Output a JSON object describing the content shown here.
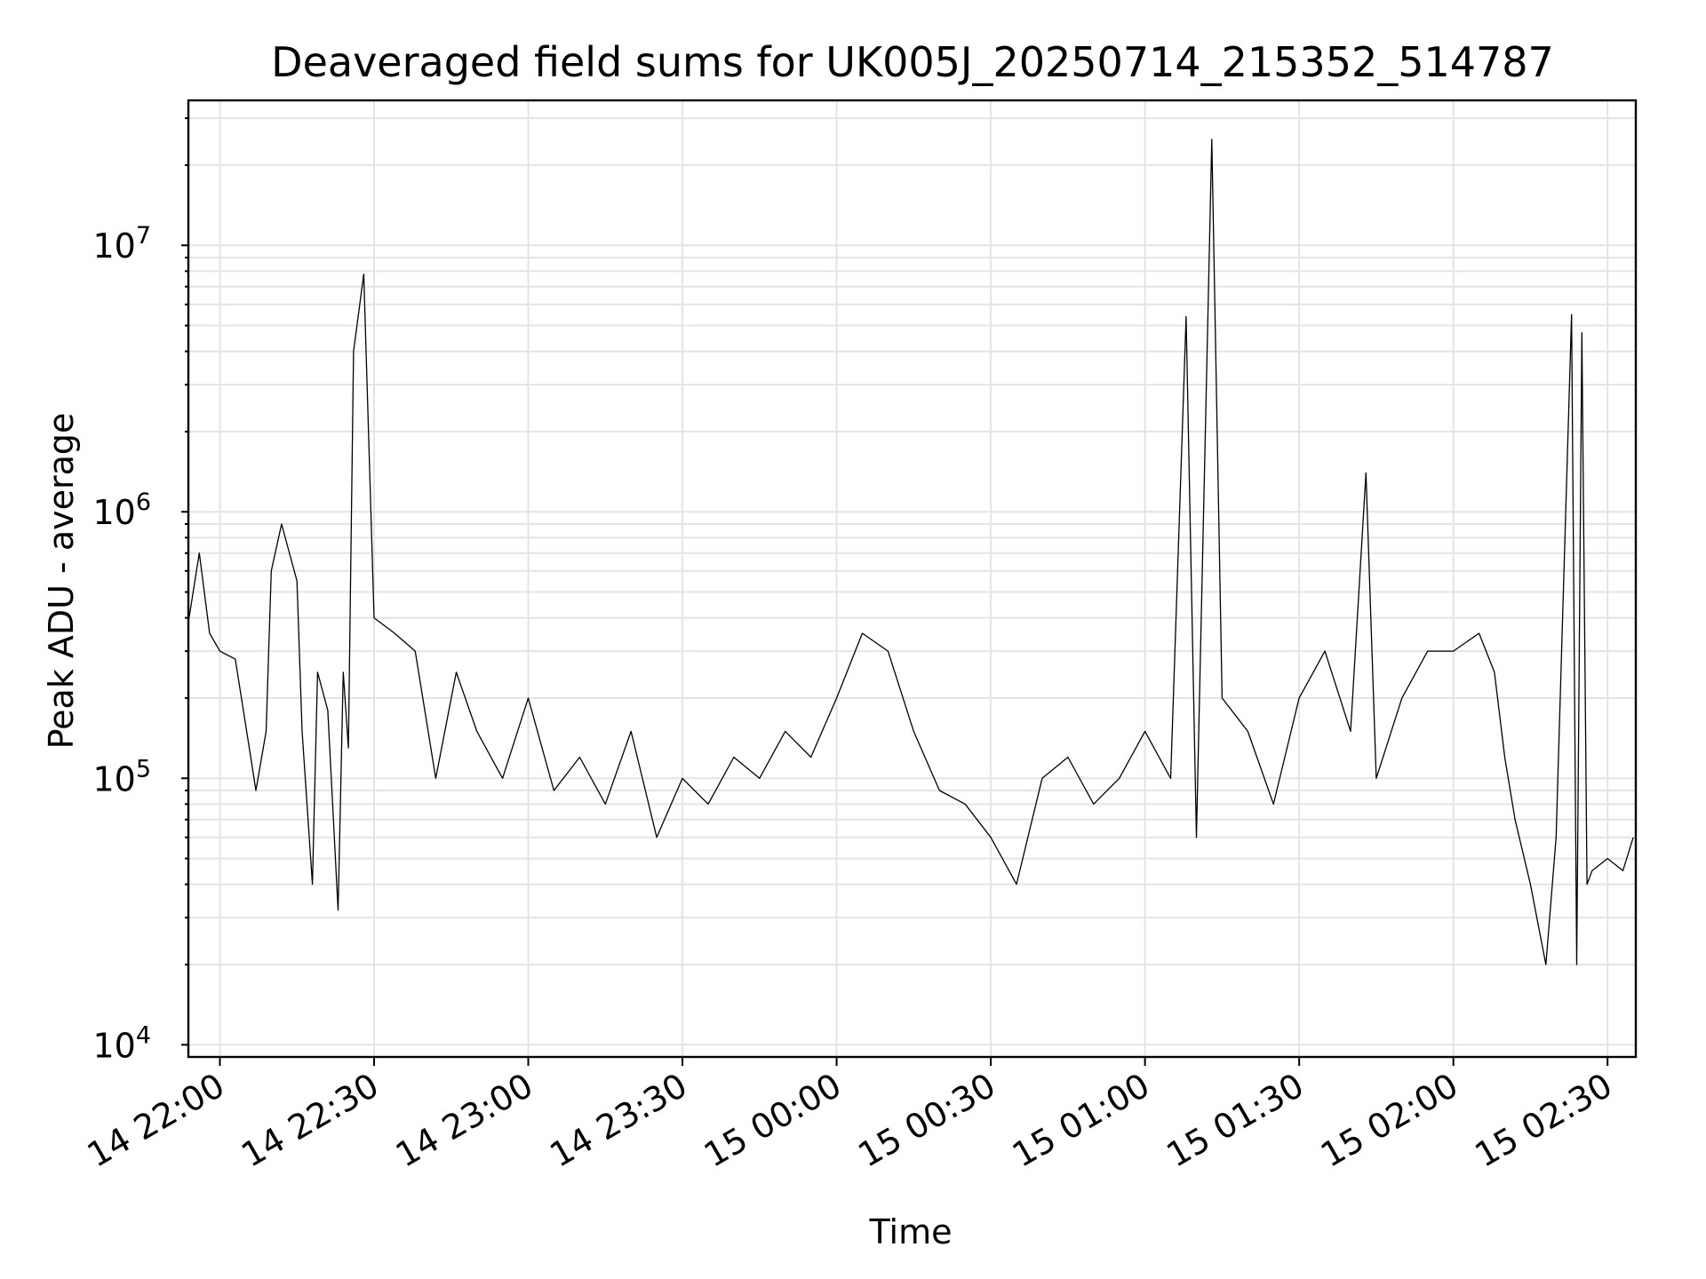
{
  "chart_data": {
    "type": "line",
    "title": "Deaveraged field sums for UK005J_20250714_215352_514787",
    "xlabel": "Time",
    "ylabel": "Peak ADU - average",
    "yscale": "log",
    "ylim": [
      9000,
      35000000
    ],
    "xlim": [
      "2025-07-14 21:53:52",
      "2025-07-15 02:35:30"
    ],
    "grid": true,
    "x_ticks": [
      "14 22:00",
      "14 22:30",
      "14 23:00",
      "14 23:30",
      "15 00:00",
      "15 00:30",
      "15 01:00",
      "15 01:30",
      "15 02:00",
      "15 02:30"
    ],
    "y_ticks": [
      {
        "value": 10000,
        "base": "10",
        "exp": "4"
      },
      {
        "value": 100000,
        "base": "10",
        "exp": "5"
      },
      {
        "value": 1000000,
        "base": "10",
        "exp": "6"
      },
      {
        "value": 10000000,
        "base": "10",
        "exp": "7"
      }
    ],
    "series": [
      {
        "color": "#000000",
        "x": [
          "2025-07-14 21:54",
          "2025-07-14 21:56",
          "2025-07-14 21:58",
          "2025-07-14 22:00",
          "2025-07-14 22:03",
          "2025-07-14 22:06",
          "2025-07-14 22:07",
          "2025-07-14 22:09",
          "2025-07-14 22:10",
          "2025-07-14 22:12",
          "2025-07-14 22:15",
          "2025-07-14 22:16",
          "2025-07-14 22:18",
          "2025-07-14 22:19",
          "2025-07-14 22:21",
          "2025-07-14 22:23",
          "2025-07-14 22:24",
          "2025-07-14 22:25",
          "2025-07-14 22:26",
          "2025-07-14 22:28",
          "2025-07-14 22:30",
          "2025-07-14 22:34",
          "2025-07-14 22:38",
          "2025-07-14 22:42",
          "2025-07-14 22:46",
          "2025-07-14 22:50",
          "2025-07-14 22:55",
          "2025-07-14 23:00",
          "2025-07-14 23:05",
          "2025-07-14 23:10",
          "2025-07-14 23:15",
          "2025-07-14 23:20",
          "2025-07-14 23:25",
          "2025-07-14 23:30",
          "2025-07-14 23:35",
          "2025-07-14 23:40",
          "2025-07-14 23:45",
          "2025-07-14 23:50",
          "2025-07-14 23:55",
          "2025-07-15 00:00",
          "2025-07-15 00:05",
          "2025-07-15 00:10",
          "2025-07-15 00:15",
          "2025-07-15 00:20",
          "2025-07-15 00:25",
          "2025-07-15 00:30",
          "2025-07-15 00:35",
          "2025-07-15 00:40",
          "2025-07-15 00:45",
          "2025-07-15 00:50",
          "2025-07-15 00:55",
          "2025-07-15 01:00",
          "2025-07-15 01:05",
          "2025-07-15 01:08",
          "2025-07-15 01:10",
          "2025-07-15 01:13",
          "2025-07-15 01:15",
          "2025-07-15 01:20",
          "2025-07-15 01:25",
          "2025-07-15 01:30",
          "2025-07-15 01:35",
          "2025-07-15 01:40",
          "2025-07-15 01:43",
          "2025-07-15 01:45",
          "2025-07-15 01:50",
          "2025-07-15 01:55",
          "2025-07-15 02:00",
          "2025-07-15 02:05",
          "2025-07-15 02:08",
          "2025-07-15 02:10",
          "2025-07-15 02:12",
          "2025-07-15 02:15",
          "2025-07-15 02:18",
          "2025-07-15 02:20",
          "2025-07-15 02:23",
          "2025-07-15 02:24",
          "2025-07-15 02:25",
          "2025-07-15 02:26",
          "2025-07-15 02:27",
          "2025-07-15 02:30",
          "2025-07-15 02:33",
          "2025-07-15 02:35"
        ],
        "y": [
          400000,
          700000,
          350000,
          300000,
          280000,
          120000,
          90000,
          150000,
          600000,
          900000,
          550000,
          150000,
          40000,
          250000,
          180000,
          32000,
          250000,
          130000,
          4000000,
          7800000,
          400000,
          350000,
          300000,
          100000,
          250000,
          150000,
          100000,
          200000,
          90000,
          120000,
          80000,
          150000,
          60000,
          100000,
          80000,
          120000,
          100000,
          150000,
          120000,
          200000,
          350000,
          300000,
          150000,
          90000,
          80000,
          60000,
          40000,
          100000,
          120000,
          80000,
          100000,
          150000,
          100000,
          5400000,
          60000,
          25000000,
          200000,
          150000,
          80000,
          200000,
          300000,
          150000,
          1400000,
          100000,
          200000,
          300000,
          300000,
          350000,
          250000,
          120000,
          70000,
          40000,
          20000,
          60000,
          5500000,
          20000,
          4700000,
          40000,
          45000,
          50000,
          45000,
          60000
        ]
      }
    ]
  }
}
